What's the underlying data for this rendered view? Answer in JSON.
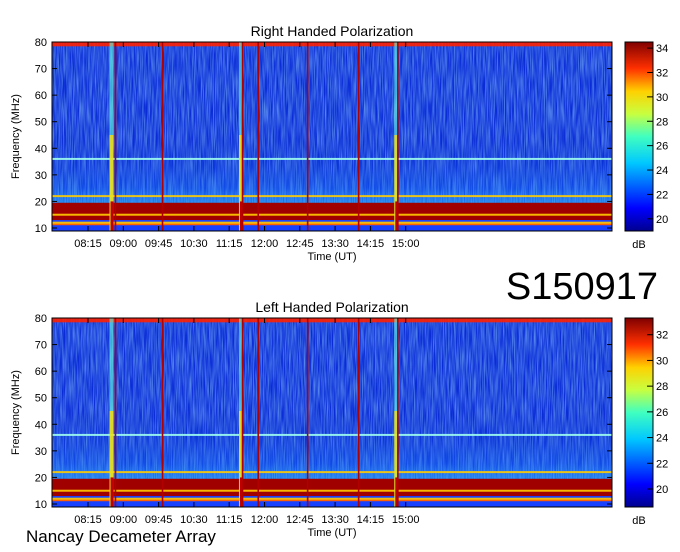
{
  "figure_id": "S150917",
  "footer": "Nancay Decameter Array",
  "chart_data": [
    {
      "type": "heatmap",
      "title": "Right Handed Polarization",
      "xlabel": "Time (UT)",
      "ylabel": "Frequency (MHz)",
      "x_ticks": [
        "08:15",
        "09:00",
        "09:45",
        "10:30",
        "11:15",
        "12:00",
        "12:45",
        "13:30",
        "14:15",
        "15:00"
      ],
      "y_ticks": [
        10,
        20,
        30,
        40,
        50,
        60,
        70,
        80
      ],
      "ylim": [
        10,
        80
      ],
      "colorbar": {
        "label": "dB",
        "ticks": [
          20,
          22,
          24,
          26,
          28,
          30,
          32,
          34
        ],
        "range": [
          19,
          34.5
        ]
      },
      "features": {
        "interference_lines_MHz": [
          79.5,
          36,
          22,
          15,
          12
        ],
        "bursts_UT": [
          "08:45",
          "11:30",
          "14:48"
        ],
        "vertical_markers_UT": [
          "08:50",
          "09:50",
          "11:32",
          "11:52",
          "12:55",
          "14:00",
          "14:50"
        ]
      }
    },
    {
      "type": "heatmap",
      "title": "Left Handed Polarization",
      "xlabel": "Time (UT)",
      "ylabel": "Frequency (MHz)",
      "x_ticks": [
        "08:15",
        "09:00",
        "09:45",
        "10:30",
        "11:15",
        "12:00",
        "12:45",
        "13:30",
        "14:15",
        "15:00"
      ],
      "y_ticks": [
        10,
        20,
        30,
        40,
        50,
        60,
        70,
        80
      ],
      "ylim": [
        10,
        80
      ],
      "colorbar": {
        "label": "dB",
        "ticks": [
          20,
          22,
          24,
          26,
          28,
          30,
          32
        ],
        "range": [
          18.6,
          33.3
        ]
      },
      "features": {
        "interference_lines_MHz": [
          79.5,
          36,
          22,
          15,
          12
        ],
        "bursts_UT": [
          "08:45",
          "11:30",
          "14:48"
        ],
        "vertical_markers_UT": [
          "08:50",
          "09:50",
          "11:32",
          "11:52",
          "12:55",
          "14:00",
          "14:50"
        ]
      }
    }
  ]
}
